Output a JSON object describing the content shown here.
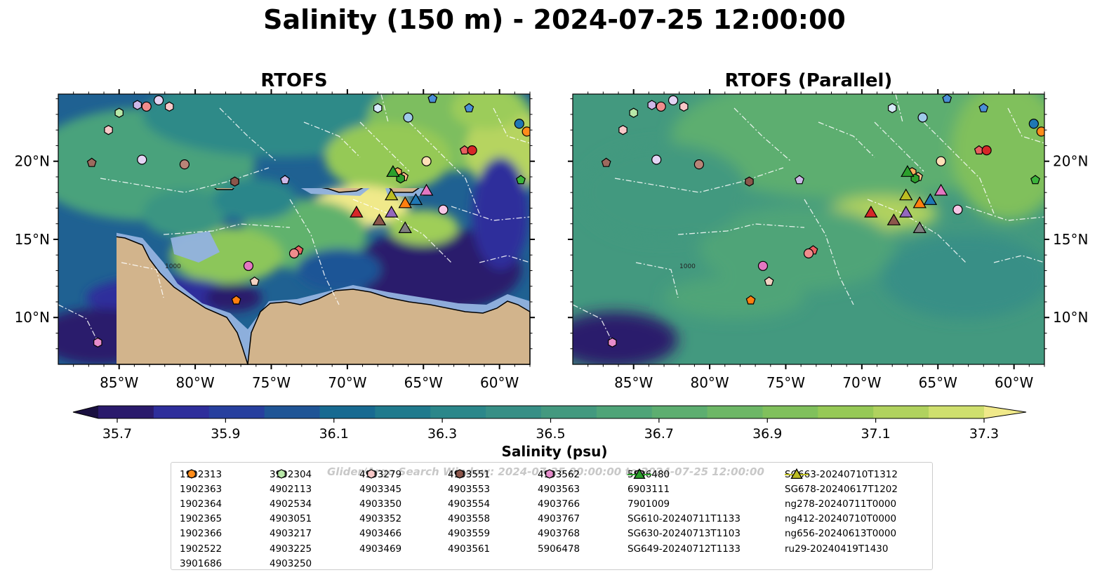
{
  "title": "Salinity (150 m) - 2024-07-25 12:00:00",
  "panels": [
    {
      "title": "RTOFS"
    },
    {
      "title": "RTOFS (Parallel)"
    }
  ],
  "axes": {
    "lon_ticks": [
      "85°W",
      "80°W",
      "75°W",
      "70°W",
      "65°W",
      "60°W"
    ],
    "lat_ticks": [
      "20°N",
      "15°N",
      "10°N"
    ],
    "contour_label": "1000"
  },
  "colorbar": {
    "label": "Salinity (psu)",
    "ticks": [
      "35.7",
      "35.9",
      "36.1",
      "36.3",
      "36.5",
      "36.7",
      "36.9",
      "37.1",
      "37.3"
    ],
    "colors": [
      "#2a1a6c",
      "#2e2e9b",
      "#273f9e",
      "#1f5596",
      "#176a91",
      "#1f7a8d",
      "#2b878a",
      "#378f86",
      "#43997f",
      "#4fa478",
      "#5dae70",
      "#6db766",
      "#80c05c",
      "#96c956",
      "#b0d25e",
      "#cfdf6e"
    ],
    "extend": "both"
  },
  "legend_watermark": "Glider/Argo Search Window: 2024-07-25 00:00:00 to 2024-07-25 12:00:00",
  "legend": {
    "columns": [
      [
        {
          "label": "1902313",
          "marker": "circle",
          "color": "#1f77b4"
        },
        {
          "label": "1902363",
          "marker": "hexagon",
          "color": "#1f77b4"
        },
        {
          "label": "1902364",
          "marker": "pentagon",
          "color": "#4a8fd6"
        },
        {
          "label": "1902365",
          "marker": "circle",
          "color": "#9ecae9"
        },
        {
          "label": "1902366",
          "marker": "hexagon",
          "color": "#d6eaf8"
        },
        {
          "label": "1902522",
          "marker": "pentagon",
          "color": "#ff7f0e"
        },
        {
          "label": "3901686",
          "marker": "circle",
          "color": "#ff8c1a"
        }
      ],
      [
        {
          "label": "3902304",
          "marker": "hexagon",
          "color": "#ffad5c"
        },
        {
          "label": "4902113",
          "marker": "pentagon",
          "color": "#ffc08a"
        },
        {
          "label": "4902534",
          "marker": "circle",
          "color": "#ffe0b8"
        },
        {
          "label": "4903051",
          "marker": "hexagon",
          "color": "#2ca02c"
        },
        {
          "label": "4903217",
          "marker": "pentagon",
          "color": "#3cb43c"
        },
        {
          "label": "4903225",
          "marker": "circle",
          "color": "#66c866"
        },
        {
          "label": "4903250",
          "marker": "hexagon",
          "color": "#b8e8a8"
        }
      ],
      [
        {
          "label": "4903279",
          "marker": "pentagon",
          "color": "#d8f5d0"
        },
        {
          "label": "4903345",
          "marker": "circle",
          "color": "#d62728"
        },
        {
          "label": "4903350",
          "marker": "hexagon",
          "color": "#e03c3c"
        },
        {
          "label": "4903352",
          "marker": "pentagon",
          "color": "#e86060"
        },
        {
          "label": "4903466",
          "marker": "circle",
          "color": "#f08c8c"
        },
        {
          "label": "4903469",
          "marker": "hexagon",
          "color": "#f8c8c8"
        }
      ],
      [
        {
          "label": "4903551",
          "marker": "pentagon",
          "color": "#9467bd"
        },
        {
          "label": "4903553",
          "marker": "circle",
          "color": "#a07fcc"
        },
        {
          "label": "4903554",
          "marker": "hexagon",
          "color": "#b69ad8"
        },
        {
          "label": "4903558",
          "marker": "pentagon",
          "color": "#cdb8e8"
        },
        {
          "label": "4903559",
          "marker": "circle",
          "color": "#e4d4f4"
        },
        {
          "label": "4903561",
          "marker": "hexagon",
          "color": "#8c564b"
        }
      ],
      [
        {
          "label": "4903562",
          "marker": "pentagon",
          "color": "#9c6a5e"
        },
        {
          "label": "4903563",
          "marker": "circle",
          "color": "#b88478"
        },
        {
          "label": "4903766",
          "marker": "hexagon",
          "color": "#d4a497"
        },
        {
          "label": "4903767",
          "marker": "pentagon",
          "color": "#f2d2c2"
        },
        {
          "label": "4903768",
          "marker": "circle",
          "color": "#e377c2"
        },
        {
          "label": "5906478",
          "marker": "hexagon",
          "color": "#e68ccb"
        }
      ],
      [
        {
          "label": "5906480",
          "marker": "pentagon",
          "color": "#eeaad8"
        },
        {
          "label": "6903111",
          "marker": "circle",
          "color": "#f6c6e6"
        },
        {
          "label": "7901009",
          "marker": "hexagon",
          "color": "#fbe0f2"
        },
        {
          "label": "SG610-20240711T1133",
          "marker": "triangle",
          "color": "#1f77b4"
        },
        {
          "label": "SG630-20240713T1103",
          "marker": "triangle",
          "color": "#ff7f0e"
        },
        {
          "label": "SG649-20240712T1133",
          "marker": "triangle",
          "color": "#2ca02c"
        }
      ],
      [
        {
          "label": "SG663-20240710T1312",
          "marker": "triangle",
          "color": "#d62728"
        },
        {
          "label": "SG678-20240617T1202",
          "marker": "triangle",
          "color": "#9467bd"
        },
        {
          "label": "ng278-20240711T0000",
          "marker": "triangle",
          "color": "#8c564b"
        },
        {
          "label": "ng412-20240710T0000",
          "marker": "triangle",
          "color": "#e377c2"
        },
        {
          "label": "ng656-20240613T0000",
          "marker": "triangle",
          "color": "#7f7f7f"
        },
        {
          "label": "ru29-20240419T1430",
          "marker": "triangle",
          "color": "#bcbd22"
        }
      ]
    ]
  },
  "map_markers": [
    {
      "lon": -85.7,
      "lat": 22.0,
      "marker": "hexagon",
      "color": "#f8c8c8"
    },
    {
      "lon": -85.0,
      "lat": 23.1,
      "marker": "hexagon",
      "color": "#b8e8a8"
    },
    {
      "lon": -83.8,
      "lat": 23.6,
      "marker": "hexagon",
      "color": "#cdb8e8"
    },
    {
      "lon": -83.2,
      "lat": 23.5,
      "marker": "circle",
      "color": "#f08c8c"
    },
    {
      "lon": -82.4,
      "lat": 23.9,
      "marker": "circle",
      "color": "#e4d4f4"
    },
    {
      "lon": -81.7,
      "lat": 23.5,
      "marker": "hexagon",
      "color": "#f8c8c8"
    },
    {
      "lon": -86.8,
      "lat": 19.9,
      "marker": "pentagon",
      "color": "#9c6a5e"
    },
    {
      "lon": -83.5,
      "lat": 20.1,
      "marker": "circle",
      "color": "#e4d4f4"
    },
    {
      "lon": -80.7,
      "lat": 19.8,
      "marker": "circle",
      "color": "#b88478"
    },
    {
      "lon": -77.4,
      "lat": 18.7,
      "marker": "hexagon",
      "color": "#8c564b"
    },
    {
      "lon": -74.1,
      "lat": 18.8,
      "marker": "pentagon",
      "color": "#cdb8e8"
    },
    {
      "lon": -68.0,
      "lat": 23.4,
      "marker": "hexagon",
      "color": "#d6eaf8"
    },
    {
      "lon": -64.4,
      "lat": 24.0,
      "marker": "pentagon",
      "color": "#4a8fd6"
    },
    {
      "lon": -66.0,
      "lat": 22.8,
      "marker": "circle",
      "color": "#9ecae9"
    },
    {
      "lon": -62.0,
      "lat": 23.4,
      "marker": "pentagon",
      "color": "#4a8fd6"
    },
    {
      "lon": -58.7,
      "lat": 22.4,
      "marker": "circle",
      "color": "#1f77b4"
    },
    {
      "lon": -58.2,
      "lat": 21.9,
      "marker": "circle",
      "color": "#ff8c1a"
    },
    {
      "lon": -66.7,
      "lat": 19.3,
      "marker": "hexagon",
      "color": "#ffad5c"
    },
    {
      "lon": -66.3,
      "lat": 19.0,
      "marker": "pentagon",
      "color": "#ffc08a"
    },
    {
      "lon": -66.5,
      "lat": 18.9,
      "marker": "hexagon",
      "color": "#2ca02c"
    },
    {
      "lon": -64.8,
      "lat": 20.0,
      "marker": "circle",
      "color": "#ffe0b8"
    },
    {
      "lon": -62.3,
      "lat": 20.7,
      "marker": "pentagon",
      "color": "#e86060"
    },
    {
      "lon": -61.8,
      "lat": 20.7,
      "marker": "circle",
      "color": "#d62728"
    },
    {
      "lon": -58.6,
      "lat": 18.8,
      "marker": "pentagon",
      "color": "#3cb43c"
    },
    {
      "lon": -63.7,
      "lat": 16.9,
      "marker": "circle",
      "color": "#f6c6e6"
    },
    {
      "lon": -73.2,
      "lat": 14.3,
      "marker": "pentagon",
      "color": "#e86060"
    },
    {
      "lon": -73.5,
      "lat": 14.1,
      "marker": "circle",
      "color": "#f08c8c"
    },
    {
      "lon": -76.5,
      "lat": 13.3,
      "marker": "circle",
      "color": "#e377c2"
    },
    {
      "lon": -76.1,
      "lat": 12.3,
      "marker": "pentagon",
      "color": "#f2d2c2"
    },
    {
      "lon": -77.3,
      "lat": 11.1,
      "marker": "pentagon",
      "color": "#ff7f0e"
    },
    {
      "lon": -86.4,
      "lat": 8.4,
      "marker": "hexagon",
      "color": "#e68ccb"
    }
  ],
  "glider_markers": [
    {
      "lon": -69.4,
      "lat": 16.7,
      "color": "#d62728"
    },
    {
      "lon": -67.9,
      "lat": 16.2,
      "color": "#8c564b"
    },
    {
      "lon": -67.1,
      "lat": 16.7,
      "color": "#9467bd"
    },
    {
      "lon": -67.0,
      "lat": 19.3,
      "color": "#2ca02c"
    },
    {
      "lon": -67.1,
      "lat": 17.8,
      "color": "#bcbd22"
    },
    {
      "lon": -66.2,
      "lat": 17.3,
      "color": "#ff7f0e"
    },
    {
      "lon": -65.5,
      "lat": 17.5,
      "color": "#1f77b4"
    },
    {
      "lon": -64.8,
      "lat": 18.1,
      "color": "#e377c2"
    },
    {
      "lon": -66.2,
      "lat": 15.7,
      "color": "#7f7f7f"
    }
  ]
}
